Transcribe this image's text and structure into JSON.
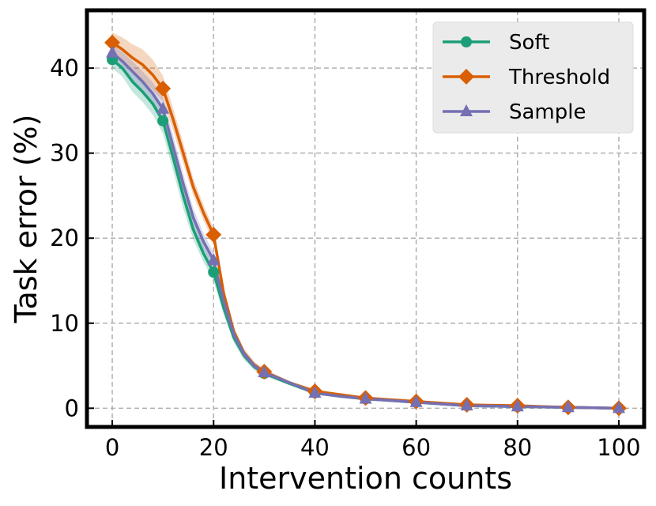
{
  "chart_data": {
    "type": "line",
    "title": "",
    "xlabel": "Intervention counts",
    "ylabel": "Task error (%)",
    "xlim": [
      -5,
      105
    ],
    "ylim": [
      -2.2,
      46.8
    ],
    "xticks": [
      0,
      20,
      40,
      60,
      80,
      100
    ],
    "yticks": [
      0,
      10,
      20,
      30,
      40
    ],
    "xtick_labels": [
      "0",
      "20",
      "40",
      "60",
      "80",
      "100"
    ],
    "ytick_labels": [
      "0",
      "10",
      "20",
      "30",
      "40"
    ],
    "grid": true,
    "legend_position": "top-right",
    "x": [
      0,
      10,
      20,
      30,
      40,
      50,
      60,
      70,
      80,
      90,
      100
    ],
    "series": [
      {
        "name": "Soft",
        "color": "#1b9e77",
        "marker": "circle",
        "values": [
          41.0,
          33.8,
          16.0,
          4.1,
          1.8,
          1.1,
          0.7,
          0.3,
          0.2,
          0.1,
          0.0
        ],
        "curve_x": [
          0,
          2,
          4,
          6,
          8,
          10,
          12,
          14,
          16,
          18,
          20,
          22,
          24,
          26,
          28,
          30,
          35,
          40,
          45,
          50,
          55,
          60,
          65,
          70,
          75,
          80,
          85,
          90,
          95,
          100
        ],
        "curve_y": [
          41.0,
          40.0,
          38.4,
          37.2,
          35.8,
          33.8,
          29.5,
          25.0,
          21.0,
          18.2,
          16.0,
          11.8,
          8.3,
          6.2,
          4.9,
          4.1,
          2.9,
          1.8,
          1.4,
          1.1,
          0.9,
          0.7,
          0.5,
          0.3,
          0.25,
          0.2,
          0.15,
          0.1,
          0.05,
          0.0
        ],
        "band_width": [
          1.0,
          1.0,
          1.2,
          1.2,
          1.3,
          1.5,
          1.5,
          1.5,
          1.2,
          1.0,
          1.0,
          0.8,
          0.6,
          0.5,
          0.4,
          0.3,
          0.2,
          0.2,
          0.15,
          0.15,
          0.1,
          0.1,
          0.1,
          0.1,
          0.1,
          0.1,
          0.1,
          0.1,
          0.1,
          0.1
        ]
      },
      {
        "name": "Threshold",
        "color": "#d95f02",
        "marker": "diamond",
        "values": [
          43.0,
          37.6,
          20.4,
          4.3,
          2.0,
          1.2,
          0.8,
          0.4,
          0.3,
          0.1,
          0.0
        ],
        "curve_x": [
          0,
          2,
          4,
          6,
          8,
          10,
          12,
          14,
          16,
          18,
          20,
          22,
          24,
          26,
          28,
          30,
          35,
          40,
          45,
          50,
          55,
          60,
          65,
          70,
          75,
          80,
          85,
          90,
          95,
          100
        ],
        "curve_y": [
          43.0,
          42.2,
          41.2,
          40.4,
          39.2,
          37.6,
          34.0,
          30.0,
          26.0,
          23.0,
          20.4,
          13.5,
          9.0,
          6.5,
          5.1,
          4.3,
          3.0,
          2.0,
          1.6,
          1.2,
          1.0,
          0.8,
          0.6,
          0.4,
          0.35,
          0.3,
          0.2,
          0.1,
          0.05,
          0.0
        ],
        "band_width": [
          1.2,
          1.4,
          1.6,
          1.8,
          1.8,
          1.5,
          1.3,
          1.2,
          1.0,
          0.9,
          0.8,
          0.7,
          0.6,
          0.5,
          0.4,
          0.3,
          0.2,
          0.2,
          0.15,
          0.15,
          0.1,
          0.1,
          0.1,
          0.1,
          0.1,
          0.1,
          0.1,
          0.1,
          0.1,
          0.1
        ]
      },
      {
        "name": "Sample",
        "color": "#7570b3",
        "marker": "triangle",
        "values": [
          41.8,
          35.2,
          17.4,
          4.2,
          1.8,
          1.1,
          0.7,
          0.3,
          0.2,
          0.1,
          0.0
        ],
        "curve_x": [
          0,
          2,
          4,
          6,
          8,
          10,
          12,
          14,
          16,
          18,
          20,
          22,
          24,
          26,
          28,
          30,
          35,
          40,
          45,
          50,
          55,
          60,
          65,
          70,
          75,
          80,
          85,
          90,
          95,
          100
        ],
        "curve_y": [
          41.8,
          40.8,
          39.6,
          38.4,
          37.0,
          35.2,
          30.8,
          26.4,
          22.4,
          19.6,
          17.4,
          12.6,
          8.7,
          6.4,
          5.0,
          4.2,
          3.0,
          1.8,
          1.4,
          1.1,
          0.9,
          0.7,
          0.5,
          0.3,
          0.25,
          0.2,
          0.15,
          0.1,
          0.05,
          0.0
        ],
        "band_width": [
          1.0,
          1.1,
          1.2,
          1.2,
          1.3,
          1.3,
          1.3,
          1.2,
          1.1,
          1.0,
          0.9,
          0.7,
          0.6,
          0.5,
          0.4,
          0.3,
          0.2,
          0.2,
          0.15,
          0.15,
          0.1,
          0.1,
          0.1,
          0.1,
          0.1,
          0.1,
          0.1,
          0.1,
          0.1,
          0.1
        ]
      }
    ]
  }
}
